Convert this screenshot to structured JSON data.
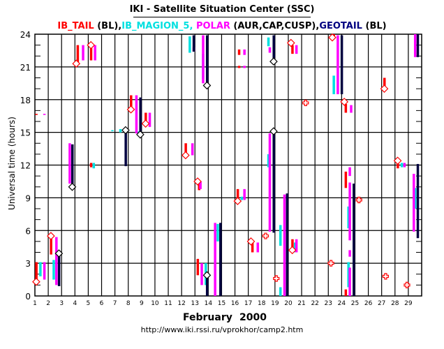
{
  "chart_data": {
    "type": "timeline",
    "title": "IKI - Satellite Situation Center (SSC)",
    "legend": [
      {
        "name": "IB_TAIL",
        "suffix": " (BL),",
        "color": "#ff0000"
      },
      {
        "name": "IB_MAGION_5,",
        "suffix": " ",
        "color": "#00e0e0"
      },
      {
        "name": "POLAR",
        "suffix": " (AUR,CAP,CUSP),",
        "color": "#ff00ff"
      },
      {
        "name": "GEOTAIL",
        "suffix": " (BL)",
        "color": "#000040"
      }
    ],
    "xlabel_month": "February",
    "xlabel_year": "2000",
    "ylabel": "Universal time (hours)",
    "url": "http://www.iki.rssi.ru/vprokhor/camp2.htm",
    "xlim": [
      1,
      30
    ],
    "ylim": [
      0,
      24
    ],
    "x_ticks": [
      "1",
      "2",
      "3",
      "4",
      "5",
      "6",
      "7",
      "8",
      "9",
      "10",
      "11",
      "12",
      "13",
      "14",
      "15",
      "16",
      "17",
      "18",
      "19",
      "20",
      "21",
      "22",
      "23",
      "24",
      "25",
      "26",
      "27",
      "28",
      "29"
    ],
    "y_ticks": [
      "0",
      "3",
      "6",
      "9",
      "12",
      "15",
      "18",
      "21",
      "24"
    ],
    "series": [
      {
        "name": "IB_TAIL",
        "color": "#ff0000",
        "segments": [
          [
            1.1,
            16.6,
            16.7
          ],
          [
            1.1,
            1.5,
            3.1
          ],
          [
            2.2,
            3.8,
            5.4
          ],
          [
            4.2,
            21.3,
            23.0
          ],
          [
            5.2,
            21.6,
            23.0
          ],
          [
            5.2,
            11.8,
            12.2
          ],
          [
            8.2,
            17.1,
            18.4
          ],
          [
            9.3,
            15.8,
            16.8
          ],
          [
            12.3,
            12.9,
            14.0
          ],
          [
            13.3,
            9.7,
            10.5
          ],
          [
            13.2,
            1.9,
            3.4
          ],
          [
            16.3,
            22.1,
            22.6
          ],
          [
            16.3,
            20.9,
            21.1
          ],
          [
            16.2,
            8.8,
            9.8
          ],
          [
            17.3,
            4.0,
            4.9
          ],
          [
            20.3,
            22.2,
            23.0
          ],
          [
            20.3,
            4.2,
            5.2
          ],
          [
            23.4,
            23.6,
            24.0
          ],
          [
            24.3,
            16.8,
            17.6
          ],
          [
            24.3,
            9.9,
            11.4
          ],
          [
            24.3,
            0.0,
            0.6
          ],
          [
            27.2,
            19.0,
            20.0
          ],
          [
            28.2,
            11.7,
            12.3
          ]
        ]
      },
      {
        "name": "IB_MAGION_5",
        "color": "#00e0e0",
        "segments": [
          [
            1.4,
            1.8,
            3.1
          ],
          [
            2.4,
            1.5,
            3.3
          ],
          [
            3.8,
            12.3,
            13.4
          ],
          [
            5.4,
            11.7,
            12.2
          ],
          [
            6.8,
            15.1,
            15.2
          ],
          [
            7.4,
            15.0,
            15.3
          ],
          [
            8.8,
            14.9,
            15.1
          ],
          [
            12.6,
            22.3,
            23.8
          ],
          [
            13.6,
            19.9,
            22.2
          ],
          [
            13.8,
            1.0,
            3.0
          ],
          [
            14.7,
            5.0,
            6.6
          ],
          [
            16.5,
            8.8,
            9.1
          ],
          [
            18.5,
            22.9,
            23.7
          ],
          [
            18.5,
            11.8,
            13.0
          ],
          [
            19.4,
            4.6,
            6.5
          ],
          [
            19.4,
            0.0,
            0.8
          ],
          [
            20.5,
            4.0,
            4.9
          ],
          [
            23.4,
            18.5,
            20.2
          ],
          [
            24.5,
            6.2,
            8.2
          ],
          [
            24.5,
            0.8,
            3.1
          ],
          [
            29.5,
            8.0,
            9.9
          ],
          [
            28.5,
            11.8,
            12.2
          ]
        ]
      },
      {
        "name": "POLAR",
        "color": "#ff00ff",
        "segments": [
          [
            1.7,
            16.6,
            16.7
          ],
          [
            1.7,
            1.5,
            3.1
          ],
          [
            2.6,
            1.0,
            5.4
          ],
          [
            3.6,
            10.3,
            14.0
          ],
          [
            5.5,
            21.6,
            23.0
          ],
          [
            4.6,
            21.6,
            23.0
          ],
          [
            8.6,
            14.9,
            18.4
          ],
          [
            9.6,
            15.5,
            16.8
          ],
          [
            12.8,
            12.9,
            14.0
          ],
          [
            12.9,
            22.4,
            22.8
          ],
          [
            13.4,
            9.8,
            10.5
          ],
          [
            13.6,
            19.5,
            23.9
          ],
          [
            13.5,
            1.0,
            3.0
          ],
          [
            14.5,
            0.0,
            6.7
          ],
          [
            16.7,
            22.1,
            22.6
          ],
          [
            16.7,
            20.9,
            21.1
          ],
          [
            16.7,
            8.8,
            9.8
          ],
          [
            17.7,
            4.0,
            4.9
          ],
          [
            18.6,
            22.3,
            22.8
          ],
          [
            18.6,
            5.9,
            14.9
          ],
          [
            19.7,
            0.0,
            9.3
          ],
          [
            20.6,
            4.0,
            5.2
          ],
          [
            20.6,
            22.2,
            23.0
          ],
          [
            23.7,
            18.5,
            23.9
          ],
          [
            24.7,
            16.8,
            17.5
          ],
          [
            24.6,
            11.0,
            11.8
          ],
          [
            24.6,
            5.1,
            10.4
          ],
          [
            24.6,
            3.6,
            4.2
          ],
          [
            24.6,
            0.0,
            2.6
          ],
          [
            28.7,
            11.8,
            12.2
          ],
          [
            29.5,
            21.9,
            24.0
          ],
          [
            29.4,
            5.9,
            11.2
          ]
        ]
      },
      {
        "name": "GEOTAIL",
        "color": "#000040",
        "segments": [
          [
            2.8,
            0.9,
            3.9
          ],
          [
            3.8,
            10.0,
            13.9
          ],
          [
            7.8,
            11.9,
            15.2
          ],
          [
            8.9,
            14.8,
            18.2
          ],
          [
            12.9,
            22.4,
            23.9
          ],
          [
            13.9,
            19.3,
            23.9
          ],
          [
            13.9,
            0.0,
            1.9
          ],
          [
            14.9,
            0.0,
            6.7
          ],
          [
            18.9,
            21.5,
            23.9
          ],
          [
            18.9,
            5.8,
            15.1
          ],
          [
            19.9,
            0.0,
            9.4
          ],
          [
            24.0,
            18.5,
            23.9
          ],
          [
            24.9,
            0.0,
            10.3
          ],
          [
            29.7,
            5.3,
            12.1
          ],
          [
            29.7,
            21.9,
            24.0
          ]
        ]
      }
    ],
    "diamond_markers": [
      {
        "series": "IB_TAIL",
        "day": 1.1,
        "hour": 1.3
      },
      {
        "series": "IB_TAIL",
        "day": 2.2,
        "hour": 5.5
      },
      {
        "series": "GEOTAIL",
        "day": 2.8,
        "hour": 3.9
      },
      {
        "series": "GEOTAIL",
        "day": 3.8,
        "hour": 10.0
      },
      {
        "series": "IB_TAIL",
        "day": 4.1,
        "hour": 21.3
      },
      {
        "series": "IB_TAIL",
        "day": 5.2,
        "hour": 23.0
      },
      {
        "series": "IB_TAIL",
        "day": 8.2,
        "hour": 17.1
      },
      {
        "series": "GEOTAIL",
        "day": 7.8,
        "hour": 15.2
      },
      {
        "series": "GEOTAIL",
        "day": 8.9,
        "hour": 14.8
      },
      {
        "series": "IB_TAIL",
        "day": 9.3,
        "hour": 15.8
      },
      {
        "series": "IB_TAIL",
        "day": 12.3,
        "hour": 12.9
      },
      {
        "series": "IB_TAIL",
        "day": 13.2,
        "hour": 10.5
      },
      {
        "series": "GEOTAIL",
        "day": 13.9,
        "hour": 19.3
      },
      {
        "series": "GEOTAIL",
        "day": 13.9,
        "hour": 1.9
      },
      {
        "series": "IB_TAIL",
        "day": 16.2,
        "hour": 8.7
      },
      {
        "series": "IB_TAIL",
        "day": 17.2,
        "hour": 5.0
      },
      {
        "series": "GEOTAIL",
        "day": 18.9,
        "hour": 21.5
      },
      {
        "series": "GEOTAIL",
        "day": 18.9,
        "hour": 15.1
      },
      {
        "series": "IB_TAIL",
        "day": 20.2,
        "hour": 23.2
      },
      {
        "series": "IB_TAIL",
        "day": 20.3,
        "hour": 4.2
      },
      {
        "series": "IB_TAIL",
        "day": 23.3,
        "hour": 23.7
      },
      {
        "series": "IB_TAIL",
        "day": 24.2,
        "hour": 17.8
      },
      {
        "series": "IB_TAIL",
        "day": 27.2,
        "hour": 19.0
      },
      {
        "series": "IB_TAIL",
        "day": 28.2,
        "hour": 12.4
      }
    ],
    "cross_markers": [
      {
        "day": 21.3,
        "hour": 17.7
      },
      {
        "day": 18.3,
        "hour": 5.5
      },
      {
        "day": 19.1,
        "hour": 1.6
      },
      {
        "day": 23.2,
        "hour": 3.0
      },
      {
        "day": 25.3,
        "hour": 8.8
      },
      {
        "day": 27.3,
        "hour": 1.8
      },
      {
        "day": 28.9,
        "hour": 1.0
      }
    ]
  }
}
